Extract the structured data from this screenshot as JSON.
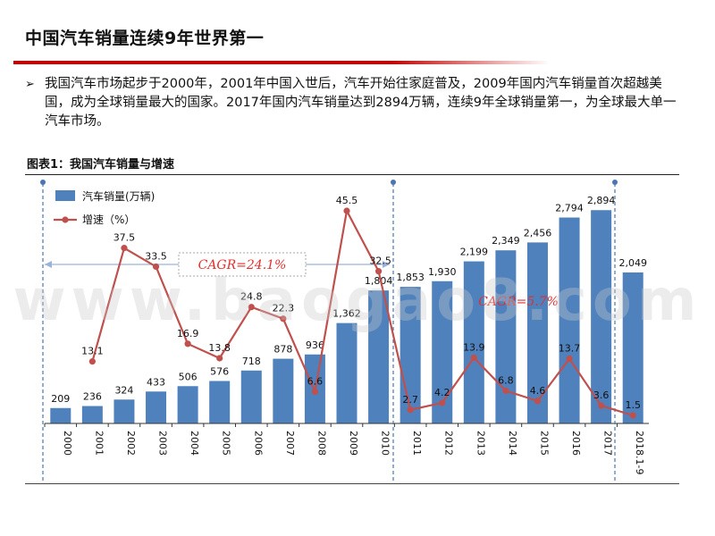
{
  "page": {
    "title": "中国汽车销量连续9年世界第一",
    "bullet_marker": "➢",
    "bullet_text": "我国汽车市场起步于2000年，2001年中国入世后，汽车开始往家庭普及，2009年国内汽车销量首次超越美国，成为全球销量最大的国家。2017年国内汽车销量达到2894万辆，连续9年全球销量第一，为全球最大单一汽车市场。",
    "chart_caption": "图表1：我国汽车销量与增速",
    "watermark": "www.baogao8.com"
  },
  "colors": {
    "bar": "#4f81bd",
    "line": "#c0504d",
    "cagr_text": "#e03030",
    "dashed": "#4a74b5",
    "title_rule": "#c00000"
  },
  "chart_data": {
    "type": "bar",
    "categories": [
      "2000",
      "2001",
      "2002",
      "2003",
      "2004",
      "2005",
      "2006",
      "2007",
      "2008",
      "2009",
      "2010",
      "2011",
      "2012",
      "2013",
      "2014",
      "2015",
      "2016",
      "2017",
      "2018.1-9"
    ],
    "series": [
      {
        "name": "汽车销量(万辆)",
        "type": "bar",
        "values": [
          209,
          236,
          324,
          433,
          506,
          576,
          718,
          878,
          936,
          1362,
          1804,
          1853,
          1930,
          2199,
          2349,
          2456,
          2794,
          2894,
          2049
        ],
        "labels": [
          "209",
          "236",
          "324",
          "433",
          "506",
          "576",
          "718",
          "878",
          "936",
          "1,362",
          "1,804",
          "1,853",
          "1,930",
          "2,199",
          "2,349",
          "2,456",
          "2,794",
          "2,894",
          "2,049"
        ]
      },
      {
        "name": "增速（%）",
        "type": "line",
        "values": [
          null,
          13.1,
          37.5,
          33.5,
          16.9,
          13.8,
          24.8,
          22.3,
          6.6,
          45.5,
          32.5,
          2.7,
          4.2,
          13.9,
          6.8,
          4.6,
          13.7,
          3.6,
          1.5
        ],
        "labels": [
          null,
          "13.1",
          "37.5",
          "33.5",
          "16.9",
          "13.8",
          "24.8",
          "22.3",
          "6.6",
          "45.5",
          "32.5",
          "2.7",
          "4.2",
          "13.9",
          "6.8",
          "4.6",
          "13.7",
          "3.6",
          "1.5"
        ]
      }
    ],
    "legend": {
      "placement": "top-left",
      "bar_label": "汽车销量(万辆)",
      "line_label": "增速（%）"
    },
    "annotations": [
      {
        "text": "CAGR=24.1%",
        "from": "2000",
        "to": "2010"
      },
      {
        "text": "CAGR=5.7%",
        "from": "2011",
        "to": "2018.1-9"
      }
    ],
    "bar_ylim": [
      0,
      3200
    ],
    "line_ylim": [
      -5,
      50
    ],
    "grid": false
  }
}
